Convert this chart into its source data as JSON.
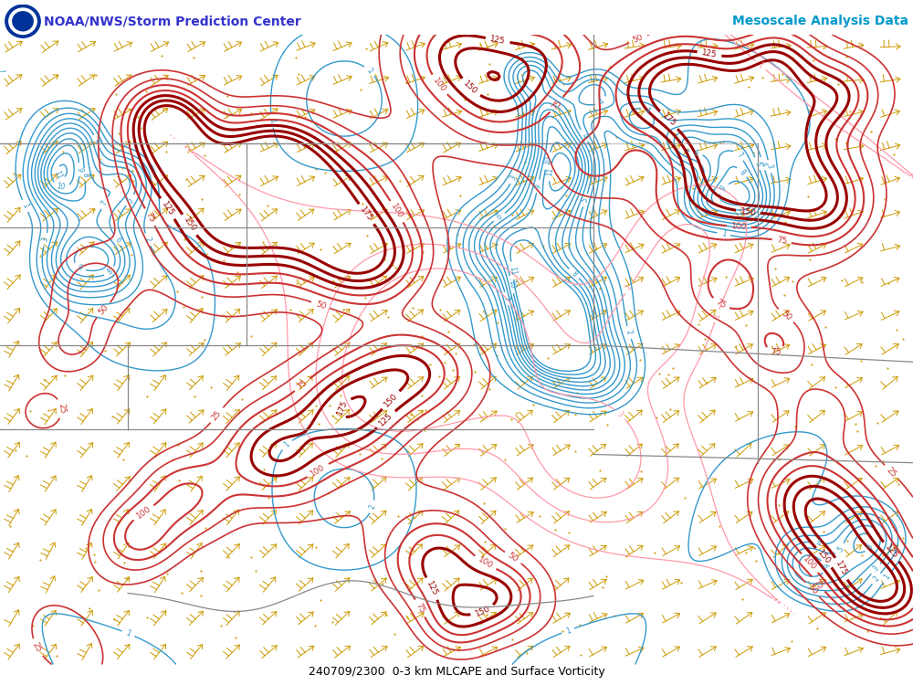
{
  "title_left": "NOAA/NWS/Storm Prediction Center",
  "title_right": "Mesoscale Analysis Data",
  "subtitle": "240709/2300  0-3 km MLCAPE and Surface Vorticity",
  "background_color": "#ffffff",
  "cape_color_dark": "#990000",
  "cape_color_light": "#cc3333",
  "vort_pos_color": "#3399cc",
  "vort_neg_color": "#ff99aa",
  "wind_color": "#cc9900",
  "border_color": "#888888",
  "title_left_color": "#3333cc",
  "title_right_color": "#0099cc",
  "subtitle_color": "#000000",
  "fig_width": 10.0,
  "fig_height": 7.5,
  "dpi": 100
}
